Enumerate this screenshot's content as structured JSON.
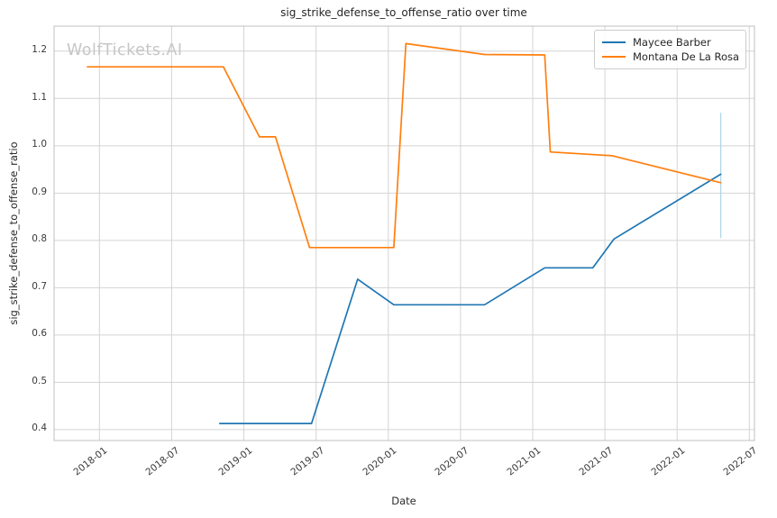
{
  "watermark": "WolfTickets.AI",
  "chart_data": {
    "type": "line",
    "title": "sig_strike_defense_to_offense_ratio over time",
    "xlabel": "Date",
    "ylabel": "sig_strike_defense_to_offense_ratio",
    "grid": true,
    "legend_position": "upper right",
    "x_ticks": [
      "2018-01",
      "2018-07",
      "2019-01",
      "2019-07",
      "2020-01",
      "2020-07",
      "2021-01",
      "2021-07",
      "2022-01",
      "2022-07"
    ],
    "y_ticks": [
      0.4,
      0.5,
      0.6,
      0.7,
      0.8,
      0.9,
      1.0,
      1.1,
      1.2
    ],
    "xlim": [
      "2017-09-08",
      "2022-07-14"
    ],
    "ylim": [
      0.377,
      1.253
    ],
    "colors": {
      "grid": "#d4d4d4",
      "spine": "#c0c0c0"
    },
    "series": [
      {
        "name": "Maycee Barber",
        "color": "#1f77b4",
        "points": [
          [
            "2018-11-01",
            0.413
          ],
          [
            "2019-06-20",
            0.413
          ],
          [
            "2019-10-15",
            0.718
          ],
          [
            "2020-01-15",
            0.664
          ],
          [
            "2020-09-01",
            0.664
          ],
          [
            "2021-02-01",
            0.742
          ],
          [
            "2021-06-01",
            0.742
          ],
          [
            "2021-07-24",
            0.803
          ],
          [
            "2022-04-20",
            0.94
          ]
        ]
      },
      {
        "name": "Montana De La Rosa",
        "color": "#ff7f0e",
        "points": [
          [
            "2017-12-01",
            1.167
          ],
          [
            "2018-11-10",
            1.167
          ],
          [
            "2019-02-10",
            1.019
          ],
          [
            "2019-03-20",
            1.019
          ],
          [
            "2019-06-15",
            0.785
          ],
          [
            "2020-01-15",
            0.785
          ],
          [
            "2020-02-15",
            1.216
          ],
          [
            "2020-09-01",
            1.193
          ],
          [
            "2021-02-01",
            1.192
          ],
          [
            "2021-02-15",
            0.987
          ],
          [
            "2021-07-20",
            0.979
          ],
          [
            "2022-04-20",
            0.922
          ]
        ]
      }
    ],
    "error_bar": {
      "series": "Maycee Barber",
      "date": "2022-04-20",
      "from": 0.805,
      "to": 1.07,
      "color": "#add8e6"
    }
  }
}
